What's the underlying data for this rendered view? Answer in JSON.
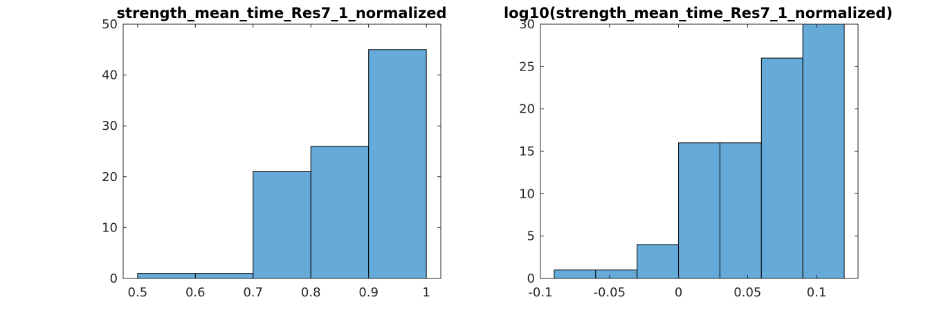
{
  "colors": {
    "bar_fill": "#65aad8",
    "bar_edge": "#000000",
    "axis": "#262626"
  },
  "chart_data": [
    {
      "type": "bar",
      "subtype": "histogram",
      "title": "strength_mean_time_Res7_1_normalized",
      "bin_edges": [
        0.5,
        0.6,
        0.7,
        0.8,
        0.9,
        1.0
      ],
      "values": [
        1,
        1,
        21,
        26,
        45
      ],
      "xlim": [
        0.475,
        1.025
      ],
      "ylim": [
        0,
        50
      ],
      "xticks": [
        0.5,
        0.6,
        0.7,
        0.8,
        0.9,
        1.0
      ],
      "xtick_labels": [
        "0.5",
        "0.6",
        "0.7",
        "0.8",
        "0.9",
        "1"
      ],
      "yticks": [
        0,
        10,
        20,
        30,
        40,
        50
      ],
      "ytick_labels": [
        "0",
        "10",
        "20",
        "30",
        "40",
        "50"
      ],
      "xlabel": "",
      "ylabel": "",
      "grid": false,
      "legend": "none"
    },
    {
      "type": "bar",
      "subtype": "histogram",
      "title": "log10(strength_mean_time_Res7_1_normalized)",
      "bin_edges": [
        -0.09,
        -0.06,
        -0.03,
        0.0,
        0.03,
        0.06,
        0.09,
        0.12
      ],
      "values": [
        1,
        1,
        4,
        16,
        16,
        26,
        30
      ],
      "xlim": [
        -0.1,
        0.13
      ],
      "ylim": [
        0,
        30
      ],
      "xticks": [
        -0.1,
        -0.05,
        0,
        0.05,
        0.1
      ],
      "xtick_labels": [
        "-0.1",
        "-0.05",
        "0",
        "0.05",
        "0.1"
      ],
      "yticks": [
        0,
        5,
        10,
        15,
        20,
        25,
        30
      ],
      "ytick_labels": [
        "0",
        "5",
        "10",
        "15",
        "20",
        "25",
        "30"
      ],
      "xlabel": "",
      "ylabel": "",
      "grid": false,
      "legend": "none"
    }
  ]
}
